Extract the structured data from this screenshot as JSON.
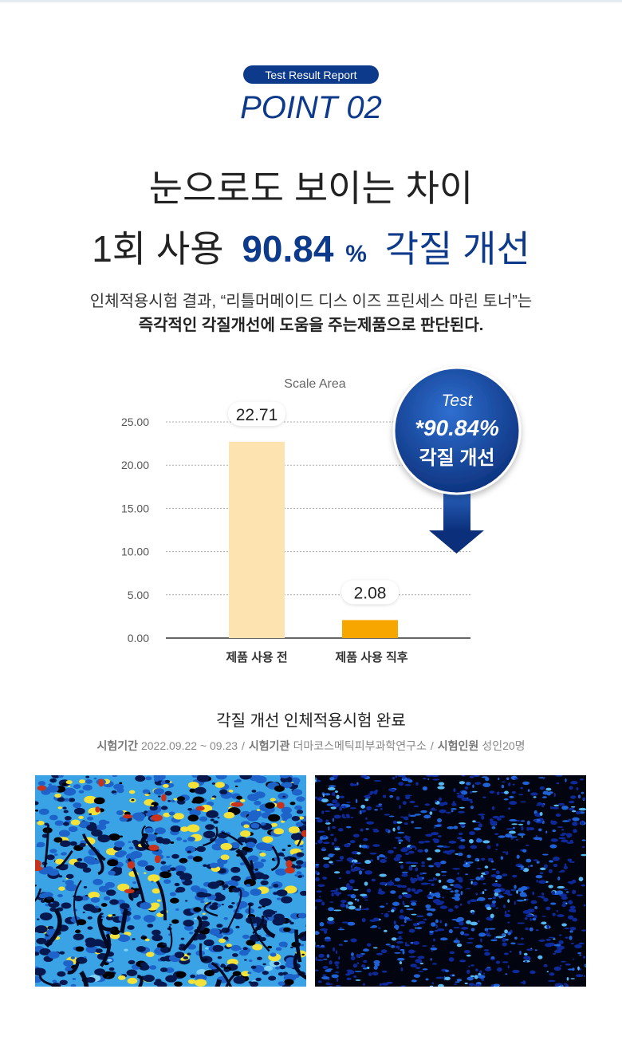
{
  "badge": "Test Result Report",
  "point": "POINT 02",
  "headline": {
    "line1": "눈으로도 보이는 차이",
    "line2_pre": "1회 사용",
    "line2_value": "90.84",
    "line2_unit": "%",
    "line2_post": "각질 개선"
  },
  "description": [
    "인체적용시험 결과, “리틀머메이드 디스 이즈 프린세스 마린 토너”는",
    "즉각적인 각질개선에 도움을 주는제품으로 판단된다."
  ],
  "chart_data": {
    "type": "bar",
    "title": "Scale Area",
    "categories": [
      "제품 사용 전",
      "제품 사용 직후"
    ],
    "values": [
      22.71,
      2.08
    ],
    "value_labels": [
      "22.71",
      "2.08"
    ],
    "colors": [
      "#fde3b0",
      "#f7a600"
    ],
    "ylim": [
      0,
      25
    ],
    "yticks": [
      {
        "value": 0,
        "label": "0.00"
      },
      {
        "value": 5,
        "label": "5.00"
      },
      {
        "value": 10,
        "label": "10.00"
      },
      {
        "value": 15,
        "label": "15.00"
      },
      {
        "value": 20,
        "label": "20.00"
      },
      {
        "value": 25,
        "label": "25.00"
      }
    ],
    "grid": true,
    "callout": {
      "line1": "Test",
      "line2": "*90.84%",
      "line3": "각질 개선"
    }
  },
  "study": {
    "title": "각질 개선 인체적용시험 완료",
    "separator": "/",
    "items": [
      {
        "label": "시험기간",
        "value": "2022.09.22 ~ 09.23"
      },
      {
        "label": "시험기관",
        "value": "더마코스메틱피부과학연구소"
      },
      {
        "label": "시험인원",
        "value": "성인20명"
      }
    ]
  }
}
